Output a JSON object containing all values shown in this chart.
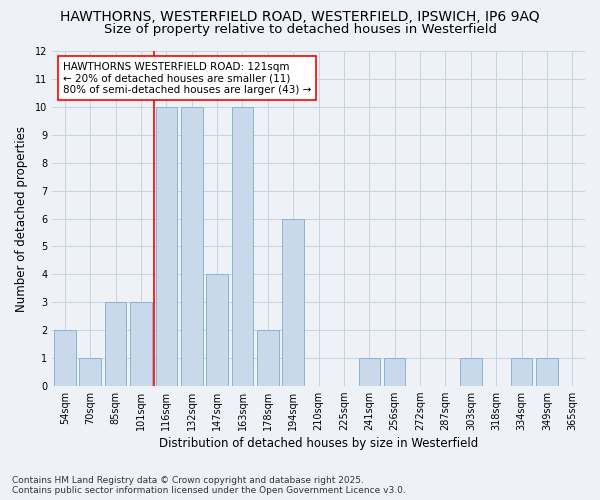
{
  "title1": "HAWTHORNS, WESTERFIELD ROAD, WESTERFIELD, IPSWICH, IP6 9AQ",
  "title2": "Size of property relative to detached houses in Westerfield",
  "xlabel": "Distribution of detached houses by size in Westerfield",
  "ylabel": "Number of detached properties",
  "categories": [
    "54sqm",
    "70sqm",
    "85sqm",
    "101sqm",
    "116sqm",
    "132sqm",
    "147sqm",
    "163sqm",
    "178sqm",
    "194sqm",
    "210sqm",
    "225sqm",
    "241sqm",
    "256sqm",
    "272sqm",
    "287sqm",
    "303sqm",
    "318sqm",
    "334sqm",
    "349sqm",
    "365sqm"
  ],
  "values": [
    2,
    1,
    3,
    3,
    10,
    10,
    4,
    10,
    2,
    6,
    0,
    0,
    1,
    1,
    0,
    0,
    1,
    0,
    1,
    1,
    0
  ],
  "bar_color": "#c9d9eb",
  "bar_edge_color": "#8ab4d4",
  "vline_index": 4,
  "annotation_text": "HAWTHORNS WESTERFIELD ROAD: 121sqm\n← 20% of detached houses are smaller (11)\n80% of semi-detached houses are larger (43) →",
  "annotation_box_color": "white",
  "annotation_box_edge_color": "red",
  "vline_color": "red",
  "ylim": [
    0,
    12
  ],
  "yticks": [
    0,
    1,
    2,
    3,
    4,
    5,
    6,
    7,
    8,
    9,
    10,
    11,
    12
  ],
  "background_color": "#eef2f7",
  "grid_color": "#c8d4e0",
  "footer": "Contains HM Land Registry data © Crown copyright and database right 2025.\nContains public sector information licensed under the Open Government Licence v3.0.",
  "title_fontsize": 10,
  "subtitle_fontsize": 9.5,
  "tick_fontsize": 7,
  "label_fontsize": 8.5,
  "footer_fontsize": 6.5,
  "annotation_fontsize": 7.5
}
